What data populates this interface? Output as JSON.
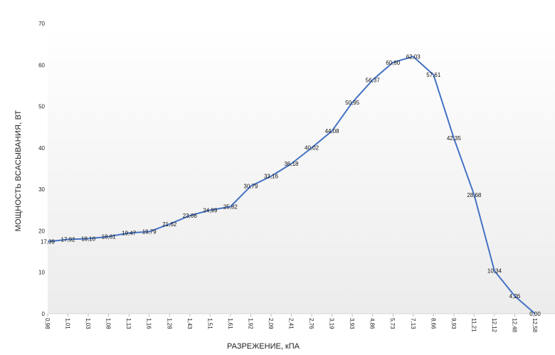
{
  "chart_data": {
    "type": "line",
    "xlabel": "РАЗРЕЖЕНИЕ, кПА",
    "ylabel": "МОЩНОСТЬ ВСАСЫВАНИЯ, ВТ",
    "ylim": [
      0,
      70
    ],
    "yticks": [
      "0",
      "10",
      "20",
      "30",
      "40",
      "50",
      "60",
      "70"
    ],
    "grid": false,
    "colors": {
      "line": "#4472c4",
      "background_top": "#ffffff",
      "background_bottom": "#ececec"
    },
    "categories": [
      "0,98",
      "1,01",
      "1,03",
      "1,08",
      "1,13",
      "1,16",
      "1,28",
      "1,43",
      "1,51",
      "1,61",
      "1,92",
      "2,09",
      "2,41",
      "2,76",
      "3,19",
      "3,93",
      "4,86",
      "5,73",
      "7,13",
      "8,66",
      "9,93",
      "11,21",
      "12,12",
      "12,48",
      "12,58"
    ],
    "values": [
      17.39,
      17.92,
      18.1,
      18.61,
      19.47,
      19.79,
      21.62,
      23.66,
      24.99,
      25.82,
      30.79,
      33.16,
      36.18,
      40.02,
      44.08,
      50.95,
      56.37,
      60.6,
      62.03,
      57.61,
      42.35,
      28.68,
      10.34,
      4.26,
      0.0
    ],
    "data_labels": [
      "17,39",
      "17,92",
      "18,10",
      "18,61",
      "19,47",
      "19,79",
      "21,62",
      "23,66",
      "24,99",
      "25,82",
      "30,79",
      "33,16",
      "36,18",
      "40,02",
      "44,08",
      "50,95",
      "56,37",
      "60,60",
      "62,03",
      "57,61",
      "42,35",
      "28,68",
      "10,34",
      "4,26",
      "0,00"
    ]
  }
}
